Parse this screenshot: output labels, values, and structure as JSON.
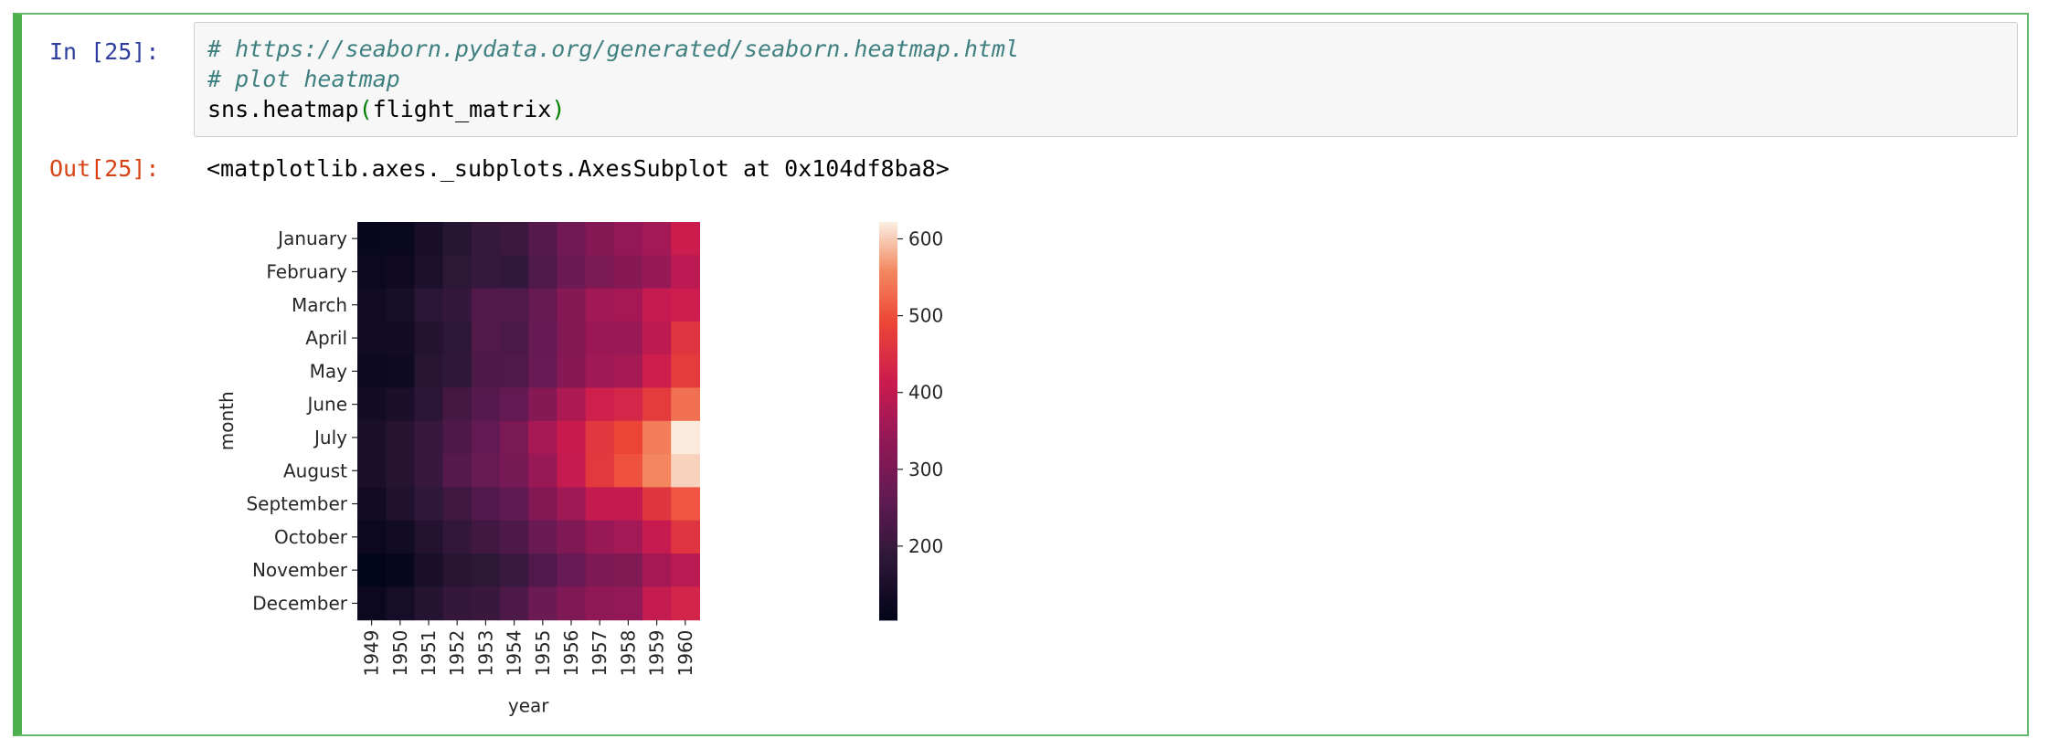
{
  "cell": {
    "in_prompt": "In [25]:",
    "out_prompt": "Out[25]:",
    "code_lines": [
      "# https://seaborn.pydata.org/generated/seaborn.heatmap.html",
      "# plot heatmap"
    ],
    "code_call_prefix": "sns.heatmap",
    "code_call_open": "(",
    "code_call_arg": "flight_matrix",
    "code_call_close": ")",
    "output_repr": "<matplotlib.axes._subplots.AxesSubplot at 0x104df8ba8>"
  },
  "colors": {
    "cell_border": "#4caf50",
    "in_prompt": "#303f9f",
    "out_prompt": "#d84315",
    "comment": "#408080",
    "paren": "#008000"
  },
  "chart_data": {
    "type": "heatmap",
    "xlabel": "year",
    "ylabel": "month",
    "x": [
      "1949",
      "1950",
      "1951",
      "1952",
      "1953",
      "1954",
      "1955",
      "1956",
      "1957",
      "1958",
      "1959",
      "1960"
    ],
    "y": [
      "January",
      "February",
      "March",
      "April",
      "May",
      "June",
      "July",
      "August",
      "September",
      "October",
      "November",
      "December"
    ],
    "values": [
      [
        112,
        115,
        145,
        171,
        196,
        204,
        242,
        284,
        315,
        340,
        360,
        417
      ],
      [
        118,
        126,
        150,
        180,
        196,
        188,
        233,
        277,
        301,
        318,
        342,
        391
      ],
      [
        132,
        141,
        178,
        193,
        236,
        235,
        267,
        317,
        356,
        362,
        406,
        419
      ],
      [
        129,
        135,
        163,
        181,
        235,
        227,
        269,
        313,
        348,
        348,
        396,
        461
      ],
      [
        121,
        125,
        172,
        183,
        229,
        234,
        270,
        318,
        355,
        363,
        420,
        472
      ],
      [
        135,
        149,
        178,
        218,
        243,
        264,
        315,
        374,
        422,
        435,
        472,
        535
      ],
      [
        148,
        170,
        199,
        230,
        264,
        302,
        364,
        413,
        465,
        491,
        548,
        622
      ],
      [
        148,
        170,
        199,
        242,
        272,
        293,
        347,
        405,
        467,
        505,
        559,
        606
      ],
      [
        136,
        158,
        184,
        209,
        237,
        259,
        312,
        355,
        404,
        404,
        463,
        508
      ],
      [
        119,
        133,
        162,
        191,
        211,
        229,
        274,
        306,
        347,
        359,
        407,
        461
      ],
      [
        104,
        114,
        146,
        172,
        180,
        203,
        237,
        271,
        305,
        310,
        362,
        390
      ],
      [
        118,
        140,
        166,
        194,
        201,
        229,
        278,
        306,
        336,
        337,
        405,
        432
      ]
    ],
    "colorbar_ticks": [
      200,
      300,
      400,
      500,
      600
    ],
    "colormap": "rocket",
    "vmin": 104,
    "vmax": 622
  }
}
